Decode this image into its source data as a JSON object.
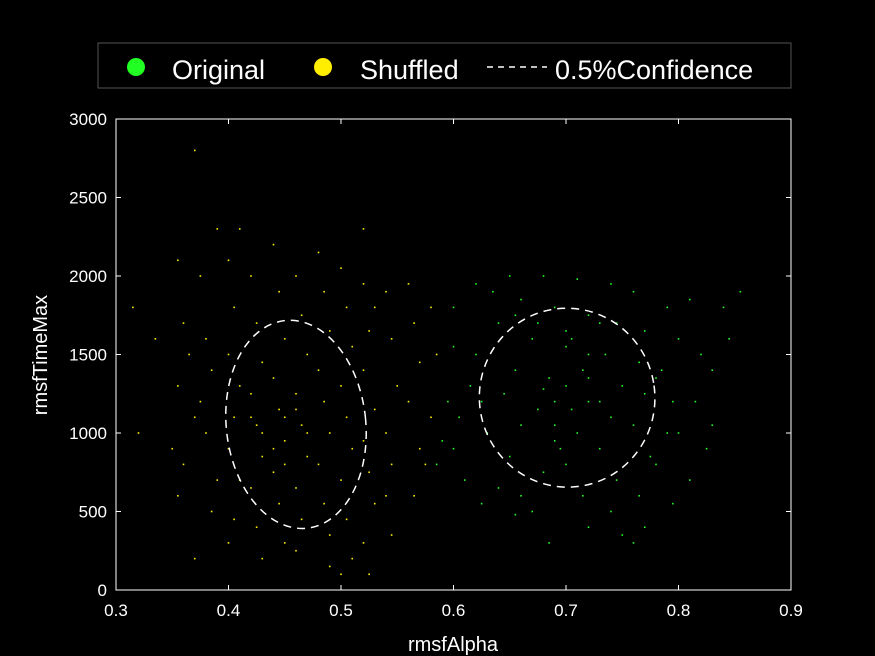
{
  "chart_data": {
    "type": "scatter",
    "xlabel": "rmsfAlpha",
    "ylabel": "rmsfTimeMax",
    "xlim": [
      0.3,
      0.9
    ],
    "ylim": [
      0,
      3000
    ],
    "xticks": [
      0.3,
      0.4,
      0.5,
      0.6,
      0.7,
      0.8,
      0.9
    ],
    "yticks": [
      0,
      500,
      1000,
      1500,
      2000,
      2500,
      3000
    ],
    "grid": false,
    "legend_position": "top",
    "legend": [
      {
        "label": "Original",
        "marker": "dot",
        "color": "#22ff22"
      },
      {
        "label": "Shuffled",
        "marker": "dot",
        "color": "#ffee00"
      },
      {
        "label": "0.5%Confidence",
        "marker": "dash",
        "color": "#ffffff"
      }
    ],
    "series": [
      {
        "name": "Original",
        "color": "#22ff22",
        "points": [
          [
            0.635,
            1900
          ],
          [
            0.64,
            1700
          ],
          [
            0.62,
            1500
          ],
          [
            0.615,
            1300
          ],
          [
            0.605,
            1100
          ],
          [
            0.6,
            900
          ],
          [
            0.61,
            700
          ],
          [
            0.625,
            550
          ],
          [
            0.65,
            2000
          ],
          [
            0.66,
            1850
          ],
          [
            0.67,
            1600
          ],
          [
            0.655,
            1400
          ],
          [
            0.645,
            1250
          ],
          [
            0.66,
            1050
          ],
          [
            0.65,
            850
          ],
          [
            0.64,
            650
          ],
          [
            0.655,
            480
          ],
          [
            0.68,
            2000
          ],
          [
            0.69,
            1800
          ],
          [
            0.7,
            1550
          ],
          [
            0.685,
            1350
          ],
          [
            0.675,
            1150
          ],
          [
            0.69,
            950
          ],
          [
            0.68,
            750
          ],
          [
            0.67,
            500
          ],
          [
            0.685,
            300
          ],
          [
            0.71,
            1980
          ],
          [
            0.72,
            1750
          ],
          [
            0.705,
            1600
          ],
          [
            0.715,
            1400
          ],
          [
            0.72,
            1200
          ],
          [
            0.71,
            1000
          ],
          [
            0.7,
            800
          ],
          [
            0.715,
            600
          ],
          [
            0.72,
            400
          ],
          [
            0.74,
            1950
          ],
          [
            0.745,
            1700
          ],
          [
            0.735,
            1500
          ],
          [
            0.75,
            1300
          ],
          [
            0.74,
            1100
          ],
          [
            0.73,
            900
          ],
          [
            0.745,
            700
          ],
          [
            0.74,
            500
          ],
          [
            0.75,
            350
          ],
          [
            0.76,
            1900
          ],
          [
            0.77,
            1650
          ],
          [
            0.765,
            1450
          ],
          [
            0.77,
            1250
          ],
          [
            0.76,
            1050
          ],
          [
            0.775,
            850
          ],
          [
            0.765,
            600
          ],
          [
            0.77,
            400
          ],
          [
            0.76,
            300
          ],
          [
            0.79,
            1800
          ],
          [
            0.8,
            1600
          ],
          [
            0.785,
            1400
          ],
          [
            0.795,
            1200
          ],
          [
            0.79,
            1000
          ],
          [
            0.78,
            800
          ],
          [
            0.795,
            550
          ],
          [
            0.81,
            1850
          ],
          [
            0.82,
            1500
          ],
          [
            0.815,
            1200
          ],
          [
            0.825,
            900
          ],
          [
            0.81,
            700
          ],
          [
            0.84,
            1800
          ],
          [
            0.855,
            1900
          ],
          [
            0.83,
            1400
          ],
          [
            0.83,
            1050
          ],
          [
            0.845,
            1600
          ],
          [
            0.595,
            1200
          ],
          [
            0.59,
            950
          ],
          [
            0.6,
            1800
          ],
          [
            0.62,
            1950
          ],
          [
            0.6,
            1550
          ],
          [
            0.585,
            800
          ],
          [
            0.63,
            1000
          ],
          [
            0.625,
            1200
          ],
          [
            0.69,
            1200
          ],
          [
            0.7,
            1300
          ],
          [
            0.69,
            1050
          ],
          [
            0.73,
            1200
          ],
          [
            0.68,
            1280
          ],
          [
            0.72,
            1350
          ],
          [
            0.705,
            1150
          ],
          [
            0.695,
            900
          ],
          [
            0.73,
            1700
          ],
          [
            0.675,
            1700
          ],
          [
            0.655,
            1750
          ],
          [
            0.7,
            1650
          ],
          [
            0.72,
            1500
          ],
          [
            0.78,
            1350
          ],
          [
            0.8,
            1000
          ],
          [
            0.66,
            600
          ]
        ]
      },
      {
        "name": "Shuffled",
        "color": "#ffee00",
        "points": [
          [
            0.37,
            2800
          ],
          [
            0.39,
            2300
          ],
          [
            0.41,
            2300
          ],
          [
            0.52,
            2300
          ],
          [
            0.53,
            1800
          ],
          [
            0.315,
            1800
          ],
          [
            0.32,
            1000
          ],
          [
            0.335,
            1600
          ],
          [
            0.355,
            2100
          ],
          [
            0.36,
            1700
          ],
          [
            0.355,
            1300
          ],
          [
            0.35,
            900
          ],
          [
            0.355,
            600
          ],
          [
            0.365,
            1500
          ],
          [
            0.37,
            1100
          ],
          [
            0.36,
            800
          ],
          [
            0.375,
            2000
          ],
          [
            0.38,
            1600
          ],
          [
            0.385,
            1400
          ],
          [
            0.375,
            1200
          ],
          [
            0.38,
            1000
          ],
          [
            0.39,
            700
          ],
          [
            0.385,
            500
          ],
          [
            0.37,
            200
          ],
          [
            0.4,
            2100
          ],
          [
            0.405,
            1800
          ],
          [
            0.4,
            1500
          ],
          [
            0.41,
            1300
          ],
          [
            0.405,
            1100
          ],
          [
            0.4,
            900
          ],
          [
            0.41,
            700
          ],
          [
            0.405,
            450
          ],
          [
            0.4,
            300
          ],
          [
            0.42,
            2000
          ],
          [
            0.425,
            1700
          ],
          [
            0.43,
            1450
          ],
          [
            0.42,
            1250
          ],
          [
            0.425,
            1050
          ],
          [
            0.43,
            850
          ],
          [
            0.42,
            650
          ],
          [
            0.425,
            400
          ],
          [
            0.43,
            200
          ],
          [
            0.44,
            2200
          ],
          [
            0.445,
            1900
          ],
          [
            0.45,
            1600
          ],
          [
            0.44,
            1350
          ],
          [
            0.445,
            1150
          ],
          [
            0.45,
            950
          ],
          [
            0.44,
            750
          ],
          [
            0.445,
            550
          ],
          [
            0.45,
            300
          ],
          [
            0.46,
            2000
          ],
          [
            0.465,
            1750
          ],
          [
            0.47,
            1500
          ],
          [
            0.46,
            1250
          ],
          [
            0.465,
            1050
          ],
          [
            0.47,
            850
          ],
          [
            0.46,
            650
          ],
          [
            0.465,
            450
          ],
          [
            0.46,
            250
          ],
          [
            0.48,
            2150
          ],
          [
            0.485,
            1900
          ],
          [
            0.49,
            1650
          ],
          [
            0.48,
            1400
          ],
          [
            0.485,
            1200
          ],
          [
            0.49,
            1000
          ],
          [
            0.48,
            800
          ],
          [
            0.485,
            550
          ],
          [
            0.49,
            350
          ],
          [
            0.5,
            2050
          ],
          [
            0.505,
            1800
          ],
          [
            0.51,
            1550
          ],
          [
            0.5,
            1300
          ],
          [
            0.505,
            1100
          ],
          [
            0.51,
            900
          ],
          [
            0.5,
            700
          ],
          [
            0.505,
            450
          ],
          [
            0.51,
            200
          ],
          [
            0.52,
            1950
          ],
          [
            0.525,
            1650
          ],
          [
            0.52,
            1400
          ],
          [
            0.53,
            1150
          ],
          [
            0.52,
            950
          ],
          [
            0.525,
            750
          ],
          [
            0.53,
            550
          ],
          [
            0.52,
            300
          ],
          [
            0.525,
            100
          ],
          [
            0.54,
            1900
          ],
          [
            0.545,
            1600
          ],
          [
            0.55,
            1300
          ],
          [
            0.54,
            1000
          ],
          [
            0.545,
            800
          ],
          [
            0.54,
            600
          ],
          [
            0.545,
            350
          ],
          [
            0.56,
            1950
          ],
          [
            0.565,
            1700
          ],
          [
            0.57,
            1450
          ],
          [
            0.56,
            1200
          ],
          [
            0.57,
            900
          ],
          [
            0.565,
            600
          ],
          [
            0.58,
            1800
          ],
          [
            0.585,
            1500
          ],
          [
            0.58,
            1100
          ],
          [
            0.575,
            800
          ],
          [
            0.43,
            1000
          ],
          [
            0.45,
            1100
          ],
          [
            0.44,
            900
          ],
          [
            0.47,
            1000
          ],
          [
            0.45,
            800
          ],
          [
            0.46,
            1150
          ],
          [
            0.42,
            1100
          ],
          [
            0.5,
            100
          ],
          [
            0.49,
            150
          ]
        ]
      }
    ],
    "ellipses": [
      {
        "label": "0.5%Confidence",
        "series": "Shuffled",
        "cx": 0.46,
        "cy": 1055,
        "rx": 0.062,
        "ry": 665,
        "rotation_deg": -6
      },
      {
        "label": "0.5%Confidence",
        "series": "Original",
        "cx": 0.701,
        "cy": 1225,
        "rx": 0.078,
        "ry": 570,
        "rotation_deg": -8
      }
    ]
  }
}
